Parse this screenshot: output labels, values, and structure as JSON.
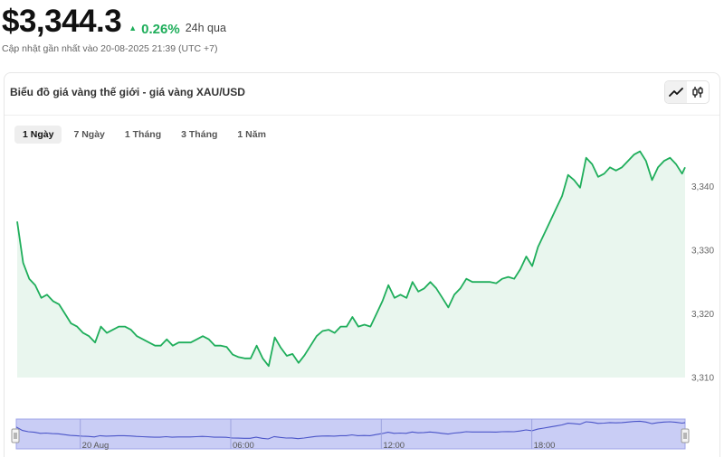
{
  "header": {
    "price": "$3,344.3",
    "change": "0.26%",
    "change_direction": "up",
    "period": "24h qua",
    "updated": "Cập nhật gần nhất vào 20-08-2025 21:39 (UTC +7)"
  },
  "card": {
    "title": "Biểu đồ giá vàng thế giới - giá vàng XAU/USD",
    "toggle": [
      {
        "icon": "line-chart-icon",
        "active": true
      },
      {
        "icon": "candlestick-icon",
        "active": false
      }
    ]
  },
  "ranges": [
    "1 Ngày",
    "7 Ngày",
    "1 Tháng",
    "3 Tháng",
    "1 Năm"
  ],
  "active_range": "1 Ngày",
  "colors": {
    "accent": "#1fae5b",
    "line": "#1fae5b",
    "area": "#e9f6ee",
    "navigator_fill": "#c9cdf5",
    "navigator_line": "#4a54c8"
  },
  "chart_data": {
    "type": "area",
    "title": "",
    "xlabel": "",
    "ylabel": "",
    "ylim": [
      3310,
      3348
    ],
    "yticks": [
      3310,
      3320,
      3330,
      3340
    ],
    "ytick_labels": [
      "3,310",
      "3,320",
      "3,330",
      "3,340"
    ],
    "xlim": [
      -2.55,
      24.11
    ],
    "grid": false,
    "legend": "none",
    "series": [
      {
        "x": [
          -2.55,
          -2.31,
          -2.07,
          -1.83,
          -1.59,
          -1.36,
          -1.12,
          -0.88,
          -0.64,
          -0.4,
          -0.16,
          0.08,
          0.32,
          0.56,
          0.79,
          1.03,
          1.27,
          1.51,
          1.75,
          1.99,
          2.23,
          2.47,
          2.71,
          2.95,
          3.18,
          3.42,
          3.66,
          3.9,
          4.14,
          4.38,
          4.62,
          4.86,
          5.1,
          5.34,
          5.58,
          5.81,
          6.05,
          6.29,
          6.53,
          6.77,
          7.01,
          7.25,
          7.49,
          7.73,
          7.97,
          8.21,
          8.44,
          8.68,
          8.92,
          9.16,
          9.4,
          9.64,
          9.88,
          10.12,
          10.36,
          10.6,
          10.83,
          11.07,
          11.31,
          11.55,
          11.79,
          12.03,
          12.27,
          12.51,
          12.75,
          12.99,
          13.23,
          13.46,
          13.7,
          13.94,
          14.18,
          14.42,
          14.66,
          14.9,
          15.14,
          15.38,
          15.62,
          15.86,
          16.09,
          16.33,
          16.57,
          16.81,
          17.05,
          17.29,
          17.53,
          17.77,
          18.01,
          18.24,
          18.48,
          18.72,
          18.96,
          19.2,
          19.44,
          19.68,
          19.92,
          20.16,
          20.4,
          20.64,
          20.88,
          21.11,
          21.35,
          21.59,
          21.83,
          22.07,
          22.31,
          22.55,
          22.79,
          23.03,
          23.27,
          23.51,
          23.75,
          23.99,
          24.11
        ],
        "y": [
          3334.5,
          3328.0,
          3325.5,
          3324.5,
          3322.5,
          3323.0,
          3322.0,
          3321.5,
          3320.0,
          3318.5,
          3318.0,
          3317.0,
          3316.5,
          3315.5,
          3318.0,
          3317.0,
          3317.5,
          3318.0,
          3318.0,
          3317.5,
          3316.5,
          3316.0,
          3315.5,
          3315.0,
          3315.0,
          3316.0,
          3315.0,
          3315.5,
          3315.5,
          3315.5,
          3316.0,
          3316.5,
          3316.0,
          3315.0,
          3315.0,
          3314.8,
          3313.6,
          3313.2,
          3313.0,
          3313.0,
          3315.0,
          3313.0,
          3311.8,
          3316.3,
          3314.7,
          3313.4,
          3313.7,
          3312.3,
          3313.5,
          3315.0,
          3316.5,
          3317.3,
          3317.5,
          3317.0,
          3318.0,
          3318.0,
          3319.5,
          3318.0,
          3318.3,
          3318.0,
          3320.0,
          3322.0,
          3324.5,
          3322.5,
          3323.0,
          3322.5,
          3325.0,
          3323.5,
          3324.0,
          3325.0,
          3324.0,
          3322.5,
          3321.0,
          3323.0,
          3324.0,
          3325.5,
          3325.0,
          3325.0,
          3325.0,
          3325.0,
          3324.8,
          3325.5,
          3325.8,
          3325.5,
          3327.0,
          3329.0,
          3327.5,
          3330.5,
          3332.5,
          3334.5,
          3336.5,
          3338.5,
          3341.8,
          3341.0,
          3339.8,
          3344.5,
          3343.5,
          3341.5,
          3342.0,
          3343.0,
          3342.5,
          3343.0,
          3344.0,
          3345.0,
          3345.5,
          3344.0,
          3341.0,
          3343.0,
          3344.0,
          3344.5,
          3343.5,
          3342.0,
          3343.0
        ]
      }
    ],
    "navigator": {
      "xticks": [
        0,
        6,
        12,
        18
      ],
      "xtick_labels": [
        "20 Aug",
        "06:00",
        "12:00",
        "18:00"
      ]
    }
  }
}
